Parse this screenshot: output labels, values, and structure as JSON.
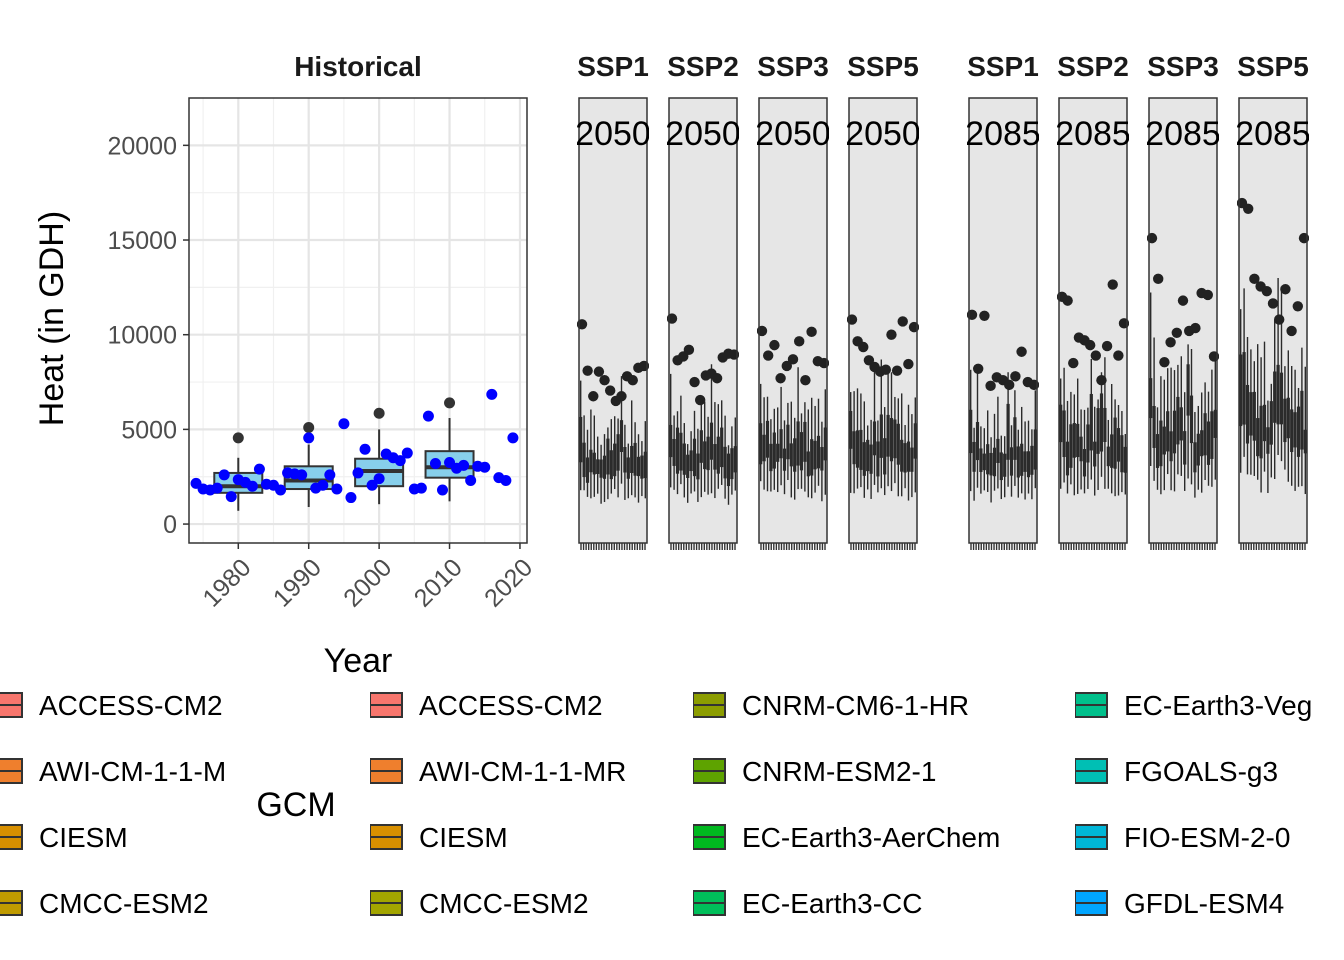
{
  "chart_data": {
    "type": "box",
    "ylabel": "Heat (in GDH)",
    "xlabel": "Year",
    "ylim": [
      -1000,
      22500
    ],
    "y_ticks": [
      "0",
      "5000",
      "10000",
      "15000",
      "20000"
    ],
    "historical": {
      "strip": "Historical",
      "xlim": [
        1973,
        2021
      ],
      "x_ticks": [
        "1980",
        "1990",
        "2000",
        "2010",
        "2020"
      ],
      "boxes": [
        {
          "center": 1980,
          "min": 700,
          "q1": 1650,
          "median": 2000,
          "q3": 2700,
          "max": 3500,
          "outliers": [
            4550
          ]
        },
        {
          "center": 1990,
          "min": 900,
          "q1": 1850,
          "median": 2300,
          "q3": 3050,
          "max": 4200,
          "outliers": [
            5100
          ]
        },
        {
          "center": 2000,
          "min": 1050,
          "q1": 2000,
          "median": 2800,
          "q3": 3450,
          "max": 5000,
          "outliers": [
            5850
          ]
        },
        {
          "center": 2010,
          "min": 1200,
          "q1": 2450,
          "median": 3000,
          "q3": 3850,
          "max": 5600,
          "outliers": [
            6400
          ]
        }
      ],
      "box_fill": "#87cfeb",
      "points_color": "#0000ff",
      "points": [
        [
          1974,
          2150
        ],
        [
          1975,
          1850
        ],
        [
          1976,
          1800
        ],
        [
          1977,
          1900
        ],
        [
          1978,
          2600
        ],
        [
          1979,
          1450
        ],
        [
          1980,
          2350
        ],
        [
          1981,
          2200
        ],
        [
          1982,
          2000
        ],
        [
          1983,
          2900
        ],
        [
          1984,
          2100
        ],
        [
          1985,
          2050
        ],
        [
          1986,
          1800
        ],
        [
          1987,
          2700
        ],
        [
          1988,
          2650
        ],
        [
          1989,
          2600
        ],
        [
          1990,
          4550
        ],
        [
          1991,
          1900
        ],
        [
          1992,
          2050
        ],
        [
          1993,
          2600
        ],
        [
          1994,
          1850
        ],
        [
          1995,
          5300
        ],
        [
          1996,
          1400
        ],
        [
          1997,
          2700
        ],
        [
          1998,
          3950
        ],
        [
          1999,
          2050
        ],
        [
          2000,
          2400
        ],
        [
          2001,
          3700
        ],
        [
          2002,
          3500
        ],
        [
          2003,
          3350
        ],
        [
          2004,
          3750
        ],
        [
          2005,
          1850
        ],
        [
          2006,
          1900
        ],
        [
          2007,
          5700
        ],
        [
          2008,
          3200
        ],
        [
          2009,
          1800
        ],
        [
          2010,
          3250
        ],
        [
          2011,
          2950
        ],
        [
          2012,
          3100
        ],
        [
          2013,
          2300
        ],
        [
          2014,
          3050
        ],
        [
          2015,
          3000
        ],
        [
          2016,
          6850
        ],
        [
          2017,
          2450
        ],
        [
          2018,
          2300
        ],
        [
          2019,
          4550
        ]
      ]
    },
    "future_panels": [
      {
        "strip": "SSP1",
        "period": "2050",
        "points": [
          10550,
          8100,
          6750,
          8050,
          7600,
          7050,
          6500,
          6750,
          7800,
          7600,
          8250,
          8350
        ]
      },
      {
        "strip": "SSP2",
        "period": "2050",
        "points": [
          10850,
          8650,
          8850,
          9200,
          7500,
          6550,
          7850,
          7950,
          7700,
          8800,
          9000,
          8950
        ]
      },
      {
        "strip": "SSP3",
        "period": "2050",
        "points": [
          10200,
          8900,
          9450,
          7700,
          8350,
          8700,
          9650,
          7600,
          10150,
          8600,
          8500
        ]
      },
      {
        "strip": "SSP5",
        "period": "2050",
        "points": [
          10800,
          9650,
          9350,
          8650,
          8300,
          8050,
          8150,
          10000,
          8100,
          10700,
          8450,
          10400
        ]
      },
      {
        "strip": "SSP1",
        "period": "2085",
        "points": [
          11050,
          8200,
          11000,
          7300,
          7750,
          7600,
          7350,
          7800,
          9100,
          7500,
          7350
        ]
      },
      {
        "strip": "SSP2",
        "period": "2085",
        "points": [
          12000,
          11800,
          8500,
          9850,
          9700,
          9450,
          8900,
          7600,
          9400,
          12650,
          8900,
          10600
        ]
      },
      {
        "strip": "SSP3",
        "period": "2085",
        "points": [
          15100,
          12950,
          8550,
          9600,
          10100,
          11800,
          10200,
          10350,
          12200,
          12100,
          8850
        ]
      },
      {
        "strip": "SSP5",
        "period": "2085",
        "points": [
          16950,
          16650,
          12950,
          12550,
          12300,
          11650,
          10800,
          12400,
          10200,
          11500,
          15100
        ]
      }
    ]
  },
  "legend": {
    "title": "GCM",
    "columns": [
      [
        {
          "label": "ACCESS-CM2",
          "color": "#f8766d"
        },
        {
          "label": "AWI-CM-1-1-M",
          "color": "#ef7f2d"
        },
        {
          "label": "CIESM",
          "color": "#d89000"
        },
        {
          "label": "CMCC-ESM2",
          "color": "#c09b00"
        }
      ],
      [
        {
          "label": "ACCESS-CM2",
          "color": "#f8766d"
        },
        {
          "label": "AWI-CM-1-1-MR",
          "color": "#ef7f2d"
        },
        {
          "label": "CIESM",
          "color": "#d89000"
        },
        {
          "label": "CMCC-ESM2",
          "color": "#a3a500"
        }
      ],
      [
        {
          "label": "CNRM-CM6-1-HR",
          "color": "#8c9d00"
        },
        {
          "label": "CNRM-ESM2-1",
          "color": "#5ea300"
        },
        {
          "label": "EC-Earth3-AerChem",
          "color": "#00b81f"
        },
        {
          "label": "EC-Earth3-CC",
          "color": "#00bf5a"
        }
      ],
      [
        {
          "label": "EC-Earth3-Veg",
          "color": "#00c08b"
        },
        {
          "label": "FGOALS-g3",
          "color": "#00bfb4"
        },
        {
          "label": "FIO-ESM-2-0",
          "color": "#00b6d8"
        },
        {
          "label": "GFDL-ESM4",
          "color": "#00a5ff"
        }
      ]
    ]
  }
}
